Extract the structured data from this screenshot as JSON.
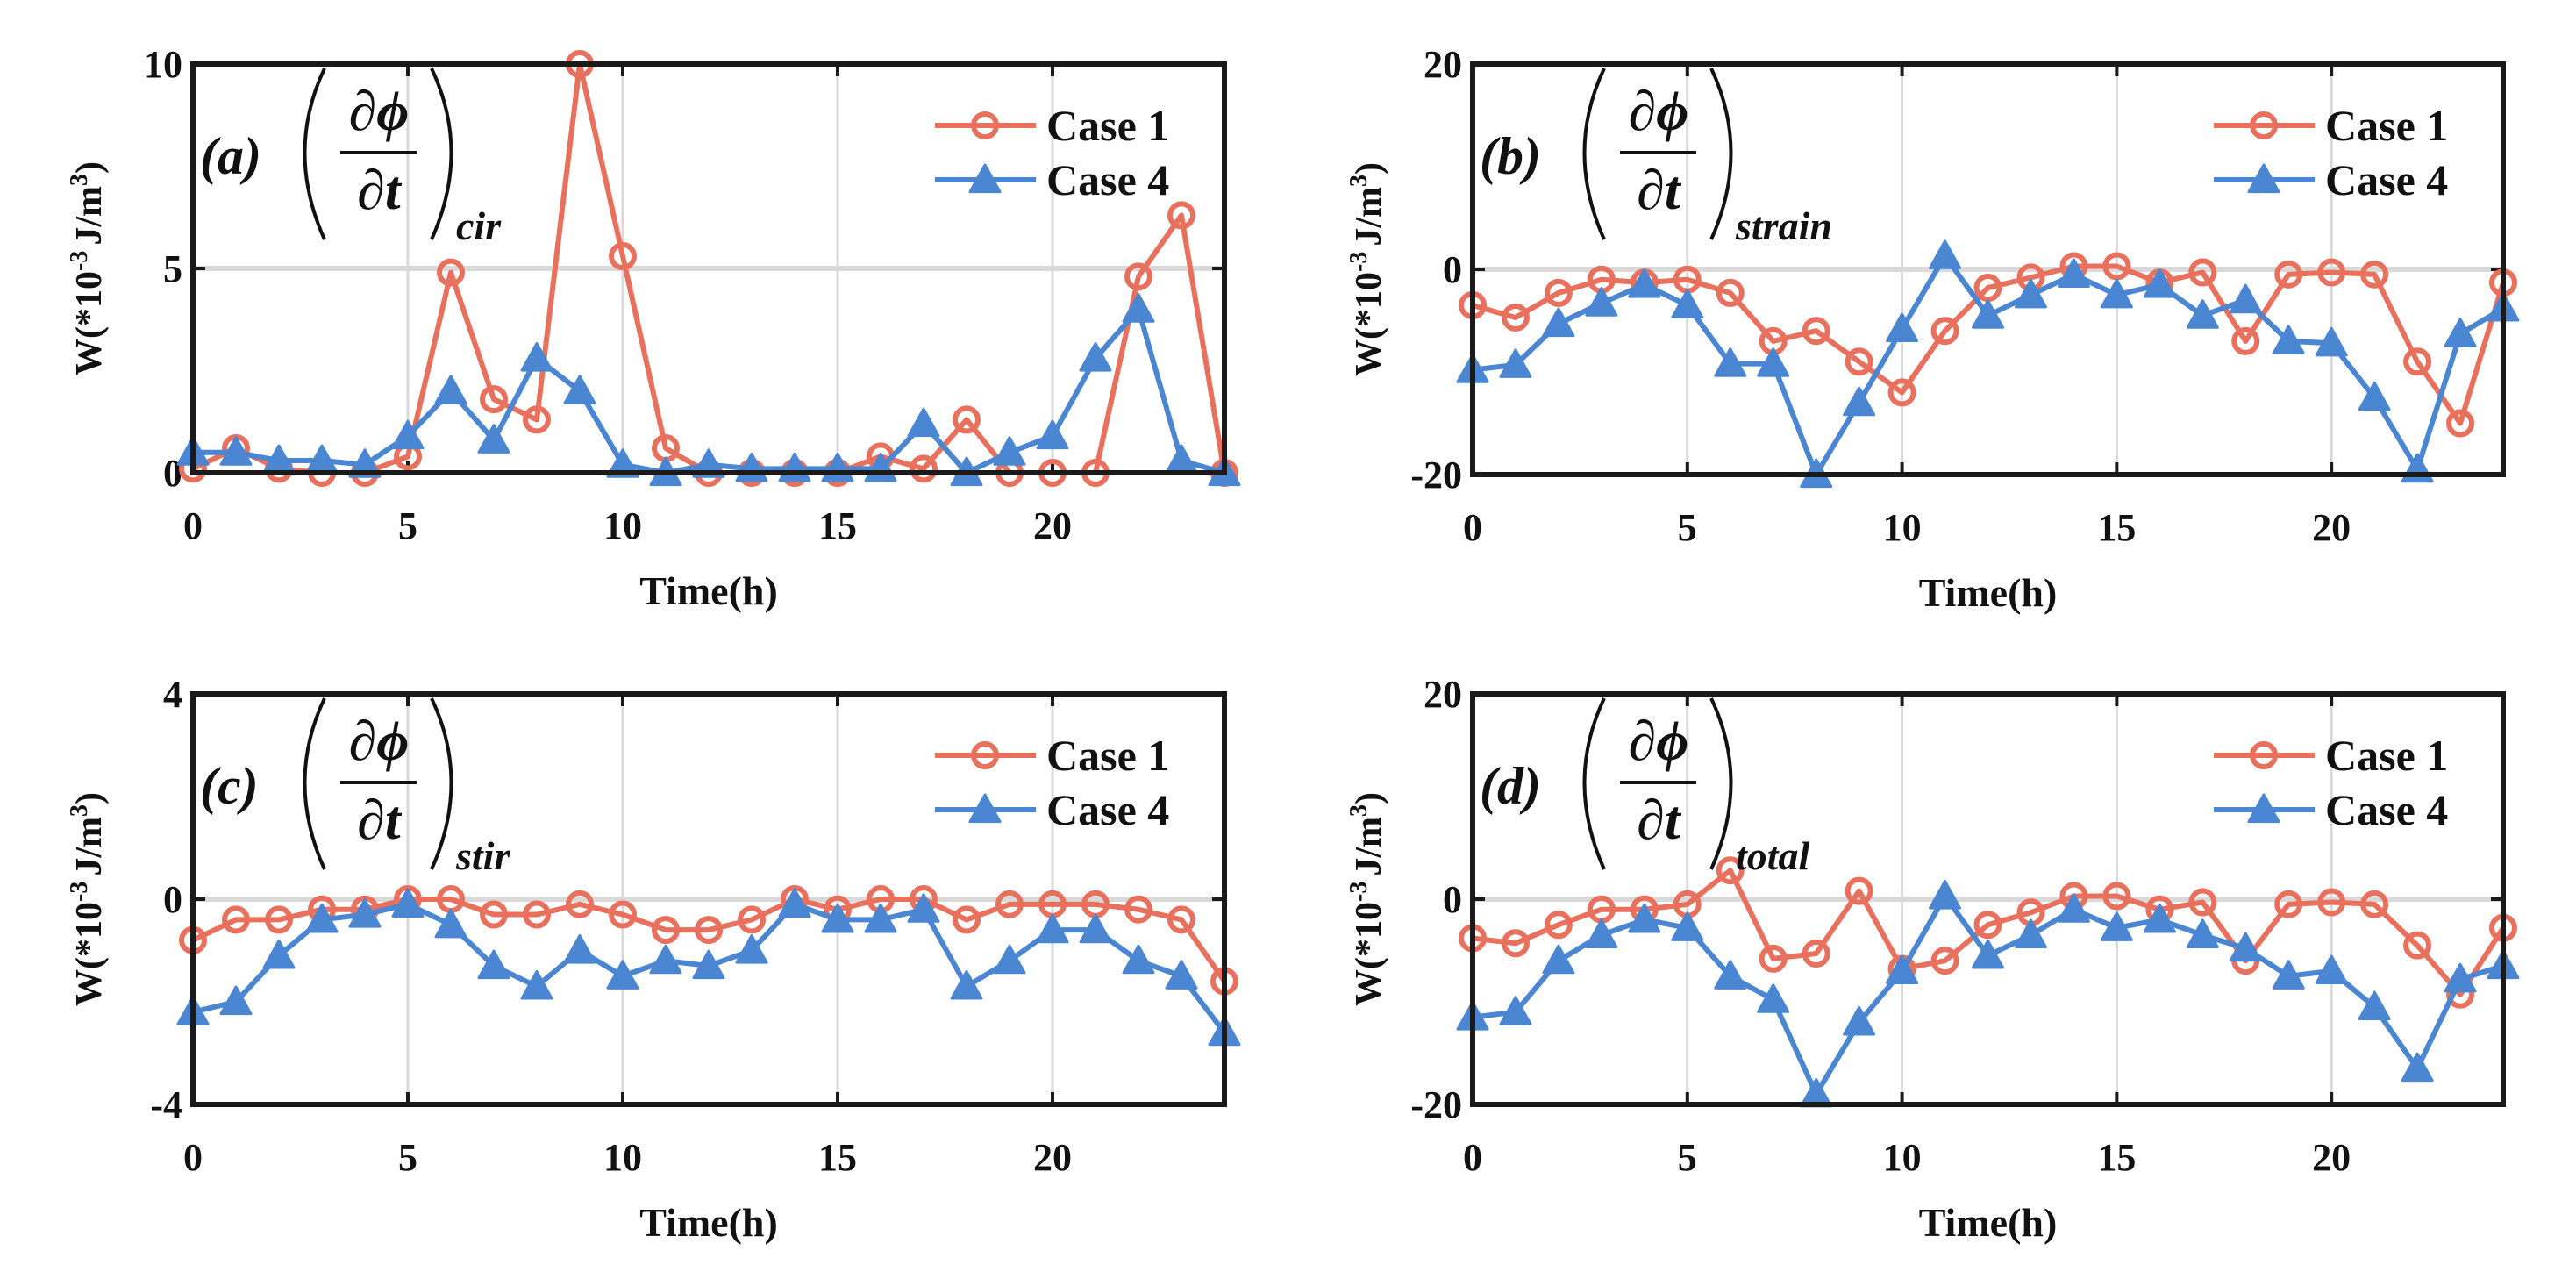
{
  "colors": {
    "case1": "#E8705C",
    "case4": "#4A86D2",
    "grid": "#d9d9d9",
    "axis": "#1a1a1a"
  },
  "chart_data": [
    {
      "id": "a",
      "type": "line",
      "annotation": {
        "label": "(a)",
        "numerator": "∂ϕ",
        "denominator": "∂t",
        "subscript": "cir"
      },
      "xlabel": "Time(h)",
      "ylabel": {
        "prefix": "W(*10",
        "exp": "-3",
        "unit": "J/m",
        "unit_exp": "3",
        "suffix": ")"
      },
      "xlim": [
        0,
        24
      ],
      "ylim": [
        0,
        10
      ],
      "xticks": [
        0,
        5,
        10,
        15,
        20
      ],
      "yticks": [
        0,
        5,
        10
      ],
      "xtick_labels": [
        "0",
        "5",
        "10",
        "15",
        "20"
      ],
      "ytick_labels": [
        "0",
        "5",
        "10"
      ],
      "grid": true,
      "legend": {
        "position": "top-right",
        "entries": [
          "Case 1",
          "Case 4"
        ]
      },
      "x": [
        0,
        1,
        2,
        3,
        4,
        5,
        6,
        7,
        8,
        9,
        10,
        11,
        12,
        13,
        14,
        15,
        16,
        17,
        18,
        19,
        20,
        21,
        22,
        23,
        24
      ],
      "series": [
        {
          "name": "Case 1",
          "marker": "circle",
          "values": [
            0.1,
            0.6,
            0.1,
            0,
            0,
            0.4,
            4.9,
            1.8,
            1.3,
            10,
            5.3,
            0.6,
            0,
            0,
            0,
            0,
            0.4,
            0.1,
            1.3,
            0,
            0,
            0,
            4.8,
            6.3,
            0
          ]
        },
        {
          "name": "Case 4",
          "marker": "triangle",
          "values": [
            0.5,
            0.5,
            0.3,
            0.3,
            0.2,
            0.9,
            2.0,
            0.8,
            2.8,
            2.0,
            0.2,
            0,
            0.2,
            0.1,
            0.1,
            0.1,
            0.1,
            1.2,
            0,
            0.5,
            0.9,
            2.8,
            4.0,
            0.3,
            0
          ]
        }
      ]
    },
    {
      "id": "b",
      "type": "line",
      "annotation": {
        "label": "(b)",
        "numerator": "∂ϕ",
        "denominator": "∂t",
        "subscript": "strain"
      },
      "xlabel": "Time(h)",
      "ylabel": {
        "prefix": "W(*10",
        "exp": "-3",
        "unit": "J/m",
        "unit_exp": "3",
        "suffix": ")"
      },
      "xlim": [
        0,
        24
      ],
      "ylim": [
        -20,
        20
      ],
      "xticks": [
        0,
        5,
        10,
        15,
        20
      ],
      "yticks": [
        -20,
        0,
        20
      ],
      "xtick_labels": [
        "0",
        "5",
        "10",
        "15",
        "20"
      ],
      "ytick_labels": [
        "-20",
        "0",
        "20"
      ],
      "grid": true,
      "legend": {
        "position": "top-right",
        "entries": [
          "Case 1",
          "Case 4"
        ]
      },
      "x": [
        0,
        1,
        2,
        3,
        4,
        5,
        6,
        7,
        8,
        9,
        10,
        11,
        12,
        13,
        14,
        15,
        16,
        17,
        18,
        19,
        20,
        21,
        22,
        23,
        24
      ],
      "series": [
        {
          "name": "Case 1",
          "marker": "circle",
          "values": [
            -3.5,
            -4.7,
            -2.3,
            -1,
            -1.3,
            -1,
            -2.3,
            -7,
            -6,
            -9,
            -12,
            -6,
            -1.8,
            -0.8,
            0.3,
            0.3,
            -1.3,
            -0.3,
            -7,
            -0.5,
            -0.3,
            -0.5,
            -9,
            -15,
            -1.3
          ]
        },
        {
          "name": "Case 4",
          "marker": "triangle",
          "values": [
            -9.8,
            -9.3,
            -5.3,
            -3.3,
            -1.5,
            -3.5,
            -9.2,
            -9.2,
            -20,
            -13,
            -5.8,
            1.3,
            -4.5,
            -2.5,
            -0.5,
            -2.5,
            -1.5,
            -4.5,
            -3,
            -7,
            -7.2,
            -12.5,
            -19.5,
            -6.3,
            -3.8
          ]
        }
      ]
    },
    {
      "id": "c",
      "type": "line",
      "annotation": {
        "label": "(c)",
        "numerator": "∂ϕ",
        "denominator": "∂t",
        "subscript": "stir"
      },
      "xlabel": "Time(h)",
      "ylabel": {
        "prefix": "W(*10",
        "exp": "-3",
        "unit": "J/m",
        "unit_exp": "3",
        "suffix": ")"
      },
      "xlim": [
        0,
        24
      ],
      "ylim": [
        -4,
        4
      ],
      "xticks": [
        0,
        5,
        10,
        15,
        20
      ],
      "yticks": [
        -4,
        0,
        4
      ],
      "xtick_labels": [
        "0",
        "5",
        "10",
        "15",
        "20"
      ],
      "ytick_labels": [
        "-4",
        "0",
        "4"
      ],
      "grid": true,
      "legend": {
        "position": "top-right",
        "entries": [
          "Case 1",
          "Case 4"
        ]
      },
      "x": [
        0,
        1,
        2,
        3,
        4,
        5,
        6,
        7,
        8,
        9,
        10,
        11,
        12,
        13,
        14,
        15,
        16,
        17,
        18,
        19,
        20,
        21,
        22,
        23,
        24
      ],
      "series": [
        {
          "name": "Case 1",
          "marker": "circle",
          "values": [
            -0.8,
            -0.4,
            -0.4,
            -0.2,
            -0.2,
            0,
            0,
            -0.3,
            -0.3,
            -0.1,
            -0.3,
            -0.6,
            -0.6,
            -0.4,
            0,
            -0.2,
            0,
            0,
            -0.4,
            -0.1,
            -0.1,
            -0.1,
            -0.2,
            -0.4,
            -1.6
          ]
        },
        {
          "name": "Case 4",
          "marker": "triangle",
          "values": [
            -2.2,
            -2.0,
            -1.1,
            -0.4,
            -0.3,
            -0.1,
            -0.5,
            -1.3,
            -1.7,
            -1.0,
            -1.5,
            -1.2,
            -1.3,
            -1.0,
            -0.1,
            -0.4,
            -0.4,
            -0.2,
            -1.7,
            -1.2,
            -0.6,
            -0.6,
            -1.2,
            -1.5,
            -2.6
          ]
        }
      ]
    },
    {
      "id": "d",
      "type": "line",
      "annotation": {
        "label": "(d)",
        "numerator": "∂ϕ",
        "denominator": "∂t",
        "subscript": "total"
      },
      "xlabel": "Time(h)",
      "ylabel": {
        "prefix": "W(*10",
        "exp": "-3",
        "unit": "J/m",
        "unit_exp": "3",
        "suffix": ")"
      },
      "xlim": [
        0,
        24
      ],
      "ylim": [
        -20,
        20
      ],
      "xticks": [
        0,
        5,
        10,
        15,
        20
      ],
      "yticks": [
        -20,
        0,
        20
      ],
      "xtick_labels": [
        "0",
        "5",
        "10",
        "15",
        "20"
      ],
      "ytick_labels": [
        "-20",
        "0",
        "20"
      ],
      "grid": true,
      "legend": {
        "position": "top-right",
        "entries": [
          "Case 1",
          "Case 4"
        ]
      },
      "x": [
        0,
        1,
        2,
        3,
        4,
        5,
        6,
        7,
        8,
        9,
        10,
        11,
        12,
        13,
        14,
        15,
        16,
        17,
        18,
        19,
        20,
        21,
        22,
        23,
        24
      ],
      "series": [
        {
          "name": "Case 1",
          "marker": "circle",
          "values": [
            -3.8,
            -4.3,
            -2.5,
            -1,
            -1,
            -0.5,
            2.8,
            -5.8,
            -5.3,
            0.8,
            -6.8,
            -6,
            -2.5,
            -1.3,
            0.3,
            0.3,
            -1,
            -0.3,
            -6,
            -0.5,
            -0.3,
            -0.5,
            -4.5,
            -9.3,
            -2.8
          ]
        },
        {
          "name": "Case 4",
          "marker": "triangle",
          "values": [
            -11.5,
            -11,
            -6,
            -3.5,
            -2,
            -2.8,
            -7.5,
            -9.8,
            -19,
            -12,
            -7,
            0.3,
            -5.5,
            -3.5,
            -1,
            -2.8,
            -2,
            -3.5,
            -4.8,
            -7.5,
            -7,
            -10.5,
            -16.5,
            -7.8,
            -6.5
          ]
        }
      ]
    }
  ]
}
